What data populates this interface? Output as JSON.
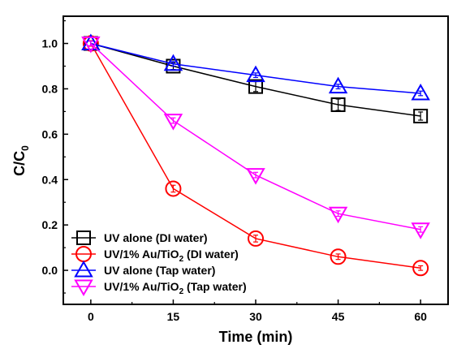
{
  "chart_data": {
    "type": "line",
    "title": "",
    "xlabel": "Time (min)",
    "ylabel_main": "C/C",
    "ylabel_sub": "0",
    "x": [
      0,
      15,
      30,
      45,
      60
    ],
    "xticks": [
      "0",
      "15",
      "30",
      "45",
      "60"
    ],
    "yticks": [
      "0.0",
      "0.2",
      "0.4",
      "0.6",
      "0.8",
      "1.0"
    ],
    "xlim": [
      -5,
      65
    ],
    "ylim": [
      -0.15,
      1.12
    ],
    "legend_position": "bottom-left",
    "series": [
      {
        "name": "UV alone (DI water)",
        "marker": "square",
        "color": "#000000",
        "values": [
          1.0,
          0.9,
          0.81,
          0.73,
          0.68
        ],
        "errors": [
          0.012,
          0.015,
          0.022,
          0.025,
          0.018
        ]
      },
      {
        "name_main": "UV/1% Au/TiO",
        "name_sub": "2",
        "name_tail": " (DI water)",
        "marker": "circle",
        "color": "#ff0000",
        "values": [
          1.0,
          0.36,
          0.14,
          0.06,
          0.01
        ],
        "errors": [
          0.012,
          0.015,
          0.015,
          0.012,
          0.01
        ]
      },
      {
        "name": "UV alone (Tap water)",
        "marker": "triangle-up",
        "color": "#0000ff",
        "values": [
          1.0,
          0.91,
          0.86,
          0.81,
          0.78
        ],
        "errors": [
          0.01,
          0.01,
          0.01,
          0.01,
          0.01
        ]
      },
      {
        "name_main": "UV/1% Au/TiO",
        "name_sub": "2",
        "name_tail": " (Tap water)",
        "marker": "triangle-down",
        "color": "#ff00ff",
        "values": [
          1.0,
          0.66,
          0.42,
          0.25,
          0.18
        ],
        "errors": [
          0.01,
          0.012,
          0.012,
          0.012,
          0.012
        ]
      }
    ]
  }
}
